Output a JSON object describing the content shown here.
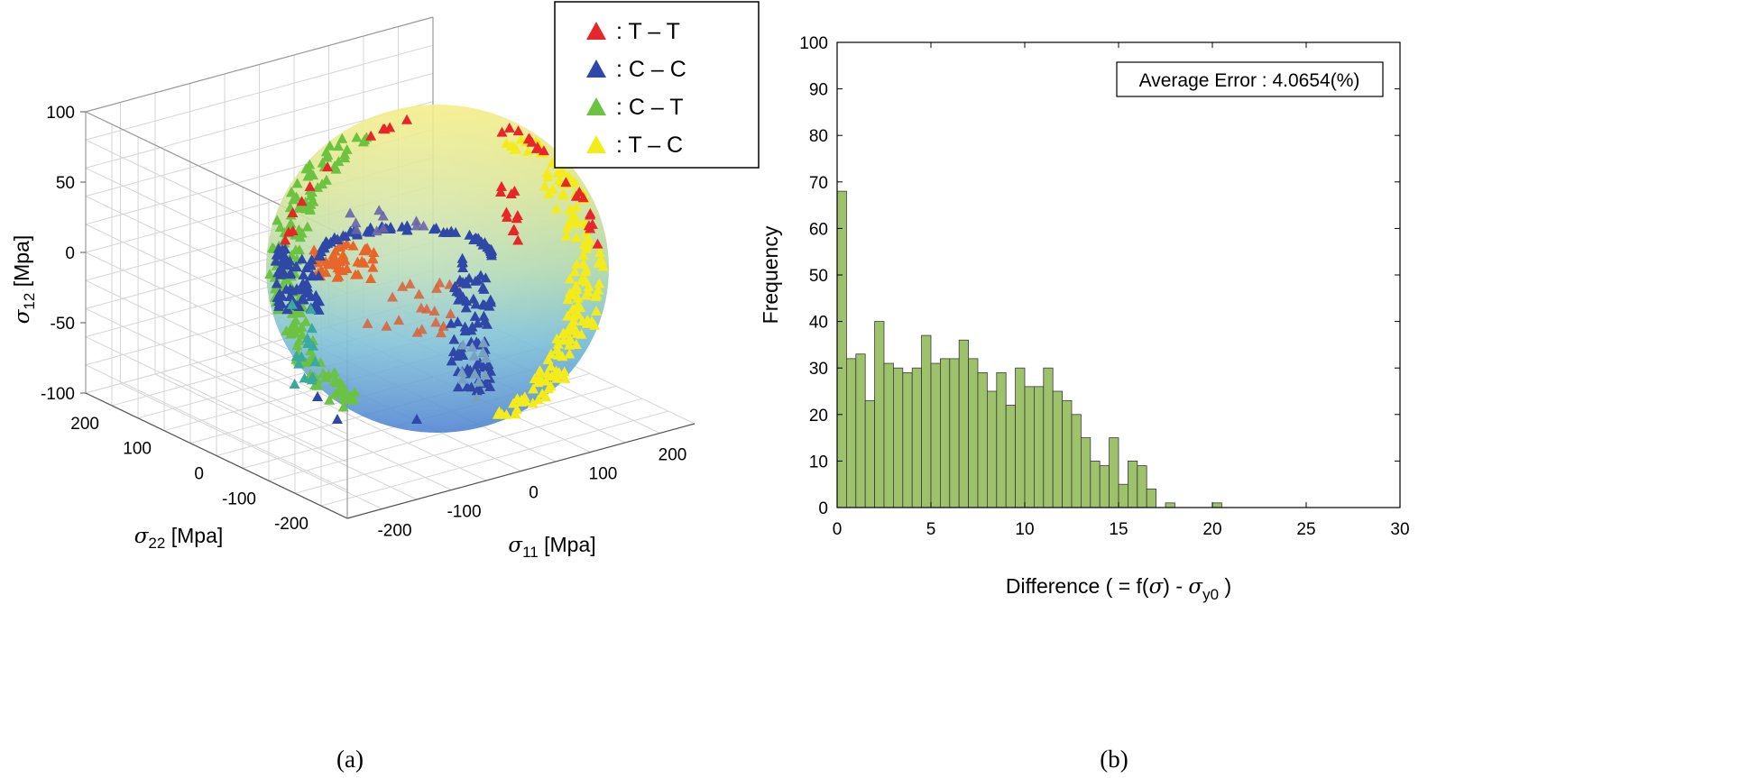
{
  "chart_data": [
    {
      "type": "scatter",
      "subtype": "3d-surface-scatter",
      "caption": "(a)",
      "axes": {
        "x": {
          "symbol": "σ",
          "subscript": "11",
          "unit": "[Mpa]",
          "ticks": [
            -200,
            -100,
            0,
            100,
            200
          ],
          "range": [
            -250,
            250
          ]
        },
        "y": {
          "symbol": "σ",
          "subscript": "22",
          "unit": "[Mpa]",
          "ticks": [
            200,
            100,
            0,
            -100,
            -200
          ],
          "range": [
            -250,
            250
          ]
        },
        "z": {
          "symbol": "σ",
          "subscript": "12",
          "unit": "[Mpa]",
          "ticks": [
            100,
            50,
            0,
            -50,
            -100
          ],
          "range": [
            -100,
            100
          ]
        }
      },
      "legend": [
        {
          "label": ": T – T",
          "color": "#e8262a"
        },
        {
          "label": ": C – C",
          "color": "#2f48a8"
        },
        {
          "label": ": C – T",
          "color": "#6cc241"
        },
        {
          "label": ": T – C",
          "color": "#f4ec1a"
        }
      ],
      "series": [
        {
          "name": "T – T",
          "color": "#e8262a"
        },
        {
          "name": "C – C",
          "color": "#2f48a8"
        },
        {
          "name": "C – T",
          "color": "#6cc241"
        },
        {
          "name": "T – C",
          "color": "#f4ec1a"
        }
      ],
      "grid": true
    },
    {
      "type": "bar",
      "subtype": "histogram",
      "caption": "(b)",
      "xlabel_prefix": "Difference ( = f(",
      "xlabel_sigma": "σ",
      "xlabel_mid": ") - ",
      "xlabel_sigma2": "σ",
      "xlabel_sub": "y0",
      "xlabel_suffix": " )",
      "ylabel": "Frequency",
      "xlim": [
        0,
        30
      ],
      "ylim": [
        0,
        100
      ],
      "xticks": [
        0,
        5,
        10,
        15,
        20,
        25,
        30
      ],
      "yticks": [
        0,
        10,
        20,
        30,
        40,
        50,
        60,
        70,
        80,
        90,
        100
      ],
      "annotation": "Average Error : 4.0654(%)",
      "bin_width": 0.5,
      "bin_starts": [
        0,
        0.5,
        1,
        1.5,
        2,
        2.5,
        3,
        3.5,
        4,
        4.5,
        5,
        5.5,
        6,
        6.5,
        7,
        7.5,
        8,
        8.5,
        9,
        9.5,
        10,
        10.5,
        11,
        11.5,
        12,
        12.5,
        13,
        13.5,
        14,
        14.5,
        15,
        15.5,
        16,
        16.5,
        17,
        17.5,
        18,
        18.5,
        19,
        19.5,
        20
      ],
      "values": [
        68,
        32,
        33,
        23,
        40,
        31,
        30,
        29,
        30,
        37,
        31,
        32,
        32,
        36,
        32,
        29,
        25,
        29,
        22,
        30,
        26,
        26,
        30,
        25,
        23,
        20,
        15,
        10,
        9,
        15,
        5,
        10,
        9,
        4,
        0,
        1,
        0,
        0,
        0,
        0,
        1
      ],
      "bar_color": "#9dc26b",
      "grid": false
    }
  ]
}
